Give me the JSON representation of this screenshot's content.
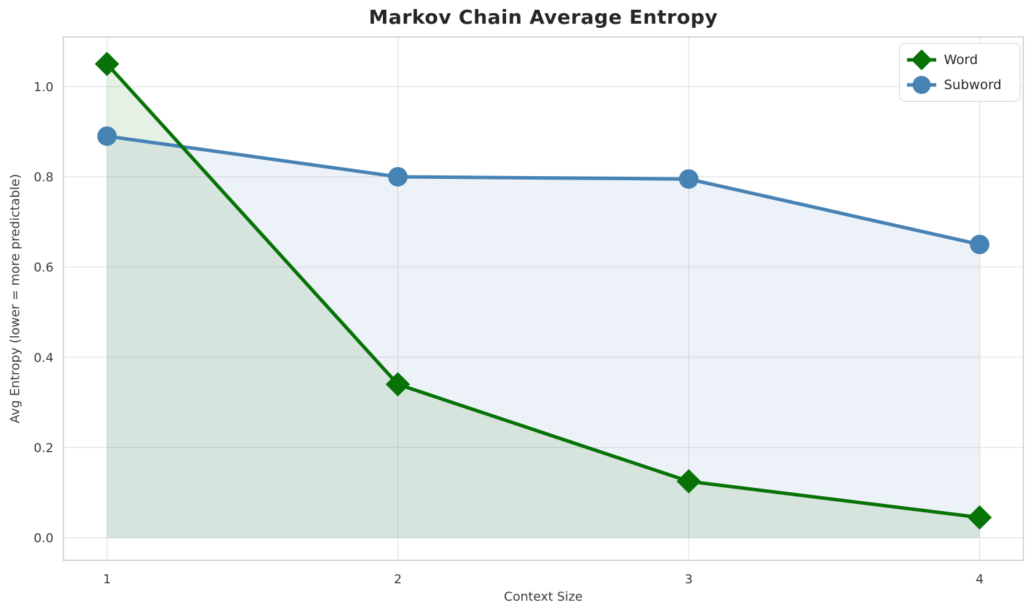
{
  "title": "Markov Chain Average Entropy",
  "xlabel": "Context Size",
  "ylabel": "Avg Entropy (lower = more predictable)",
  "colors": {
    "background": "#ffffff",
    "grid": "#e8e8e8",
    "spine": "#d6d6d6",
    "tick_text": "#3b3b3b",
    "title_text": "#262626",
    "word_green": "#077307",
    "subword_blue": "#4682b4",
    "fill_alpha": 0.1,
    "legend_border": "#d2d2d2"
  },
  "chart_data": {
    "type": "line",
    "title": "Markov Chain Average Entropy",
    "xlabel": "Context Size",
    "ylabel": "Avg Entropy (lower = more predictable)",
    "x": [
      1,
      2,
      3,
      4
    ],
    "series": [
      {
        "name": "Word",
        "marker": "diamond",
        "color": "#077307",
        "line_width": 5,
        "values": [
          1.05,
          0.34,
          0.125,
          0.045
        ],
        "fill_to_zero": true
      },
      {
        "name": "Subword",
        "marker": "circle",
        "color": "#4682b4",
        "line_width": 5,
        "values": [
          0.89,
          0.8,
          0.795,
          0.65
        ],
        "fill_to_zero": true
      }
    ],
    "xticks": [
      "1",
      "2",
      "3",
      "4"
    ],
    "xtick_values": [
      1,
      2,
      3,
      4
    ],
    "yticks": [
      "0.0",
      "0.2",
      "0.4",
      "0.6",
      "0.8",
      "1.0"
    ],
    "ytick_values": [
      0.0,
      0.2,
      0.4,
      0.6,
      0.8,
      1.0
    ],
    "xlim": [
      0.85,
      4.15
    ],
    "ylim": [
      -0.05,
      1.11
    ],
    "grid": true,
    "legend_position": "upper right"
  },
  "legend": {
    "items": [
      {
        "label": "Word"
      },
      {
        "label": "Subword"
      }
    ]
  }
}
